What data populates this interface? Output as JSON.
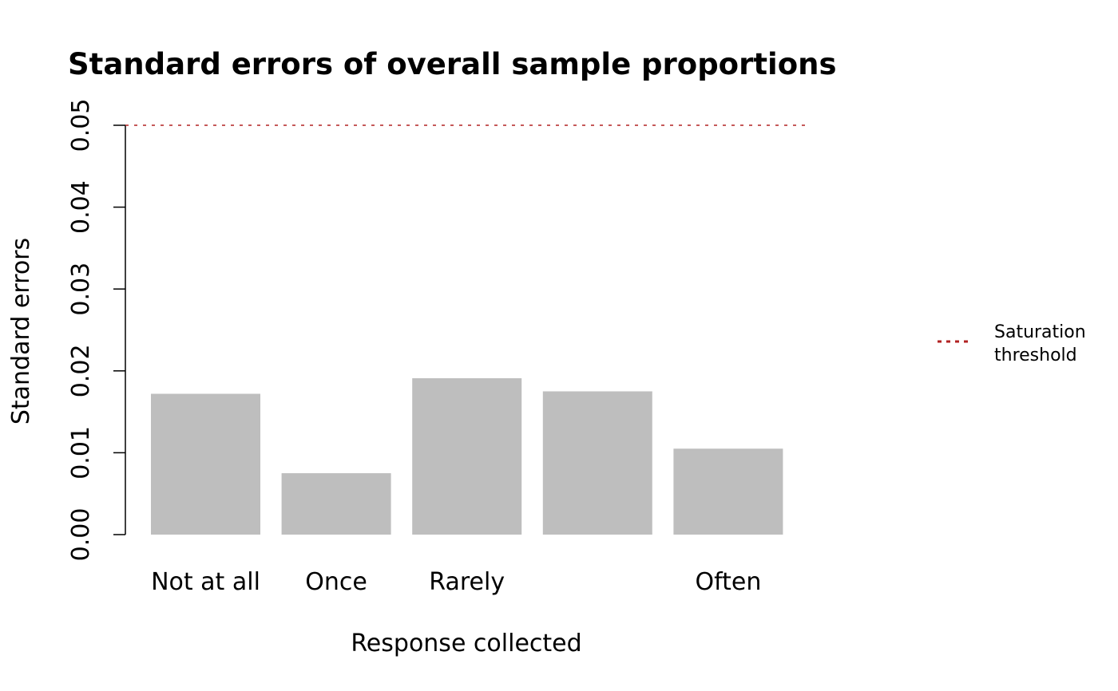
{
  "chart_data": {
    "type": "bar",
    "title": "Standard errors of overall sample proportions",
    "xlabel": "Response collected",
    "ylabel": "Standard errors",
    "categories": [
      "Not at all",
      "Once",
      "Rarely",
      "",
      "Often"
    ],
    "values": [
      0.0172,
      0.0075,
      0.0191,
      0.0175,
      0.0105
    ],
    "ylim": [
      0,
      0.05
    ],
    "yticks": [
      "0.00",
      "0.01",
      "0.02",
      "0.03",
      "0.04",
      "0.05"
    ],
    "bar_color": "#bebebe",
    "threshold": {
      "value": 0.05,
      "color": "#b22222",
      "style": "dotted"
    },
    "legend": {
      "placement": "right",
      "entries": [
        {
          "label_line1": "Saturation",
          "label_line2": "threshold",
          "color": "#b22222",
          "style": "dotted"
        }
      ]
    },
    "grid": false
  }
}
